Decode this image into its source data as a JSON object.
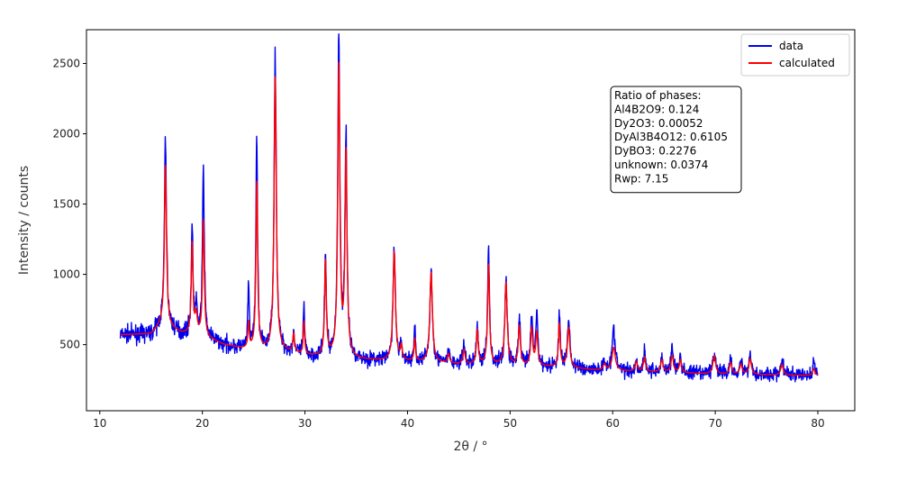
{
  "chart_data": {
    "type": "line",
    "xlabel": "2θ / °",
    "ylabel": "Intensity / counts",
    "xlim": [
      8.7,
      83.6
    ],
    "ylim": [
      30,
      2740
    ],
    "xticks": [
      10,
      20,
      30,
      40,
      50,
      60,
      70,
      80
    ],
    "yticks": [
      500,
      1000,
      1500,
      2000,
      2500
    ],
    "legend_position": "top-right",
    "x_range": [
      12,
      80
    ],
    "series": [
      {
        "name": "data",
        "color": "#0000ee",
        "style": "noisy-line",
        "noise": 28
      },
      {
        "name": "calculated",
        "color": "#ff0000",
        "style": "line",
        "noise": 0
      }
    ],
    "background": [
      [
        12,
        570
      ],
      [
        15,
        575
      ],
      [
        16,
        640
      ],
      [
        18,
        580
      ],
      [
        20,
        560
      ],
      [
        22,
        500
      ],
      [
        24,
        470
      ],
      [
        26,
        460
      ],
      [
        28,
        450
      ],
      [
        30,
        420
      ],
      [
        33,
        410
      ],
      [
        36,
        390
      ],
      [
        40,
        380
      ],
      [
        45,
        360
      ],
      [
        50,
        350
      ],
      [
        55,
        340
      ],
      [
        58,
        320
      ],
      [
        62,
        310
      ],
      [
        66,
        300
      ],
      [
        70,
        290
      ],
      [
        75,
        285
      ],
      [
        80,
        280
      ]
    ],
    "peaks": [
      {
        "x": 16.4,
        "calc": 1780,
        "obs": 1955,
        "w": 0.12
      },
      {
        "x": 19.0,
        "calc": 1220,
        "obs": 1330,
        "w": 0.1
      },
      {
        "x": 19.4,
        "calc": 700,
        "obs": 740,
        "w": 0.12
      },
      {
        "x": 20.1,
        "calc": 1380,
        "obs": 1780,
        "w": 0.1
      },
      {
        "x": 24.5,
        "calc": 650,
        "obs": 900,
        "w": 0.08
      },
      {
        "x": 25.3,
        "calc": 1660,
        "obs": 1950,
        "w": 0.1
      },
      {
        "x": 27.1,
        "calc": 2410,
        "obs": 2530,
        "w": 0.13
      },
      {
        "x": 28.9,
        "calc": 570,
        "obs": 580,
        "w": 0.1
      },
      {
        "x": 29.9,
        "calc": 660,
        "obs": 750,
        "w": 0.08
      },
      {
        "x": 32.0,
        "calc": 1090,
        "obs": 1130,
        "w": 0.1
      },
      {
        "x": 33.3,
        "calc": 2460,
        "obs": 2680,
        "w": 0.12
      },
      {
        "x": 34.0,
        "calc": 1850,
        "obs": 1950,
        "w": 0.12
      },
      {
        "x": 38.7,
        "calc": 1160,
        "obs": 1170,
        "w": 0.14
      },
      {
        "x": 39.4,
        "calc": 480,
        "obs": 490,
        "w": 0.1
      },
      {
        "x": 40.7,
        "calc": 540,
        "obs": 620,
        "w": 0.08
      },
      {
        "x": 42.3,
        "calc": 1010,
        "obs": 1010,
        "w": 0.15
      },
      {
        "x": 44.0,
        "calc": 430,
        "obs": 440,
        "w": 0.12
      },
      {
        "x": 45.5,
        "calc": 460,
        "obs": 490,
        "w": 0.12
      },
      {
        "x": 46.8,
        "calc": 600,
        "obs": 630,
        "w": 0.11
      },
      {
        "x": 47.9,
        "calc": 1070,
        "obs": 1200,
        "w": 0.11
      },
      {
        "x": 49.6,
        "calc": 940,
        "obs": 940,
        "w": 0.14
      },
      {
        "x": 50.9,
        "calc": 630,
        "obs": 670,
        "w": 0.12
      },
      {
        "x": 52.1,
        "calc": 610,
        "obs": 680,
        "w": 0.12
      },
      {
        "x": 52.6,
        "calc": 580,
        "obs": 700,
        "w": 0.12
      },
      {
        "x": 54.8,
        "calc": 650,
        "obs": 710,
        "w": 0.1
      },
      {
        "x": 55.7,
        "calc": 620,
        "obs": 680,
        "w": 0.14
      },
      {
        "x": 59.2,
        "calc": 360,
        "obs": 380,
        "w": 0.15
      },
      {
        "x": 60.1,
        "calc": 480,
        "obs": 600,
        "w": 0.18
      },
      {
        "x": 62.3,
        "calc": 380,
        "obs": 380,
        "w": 0.12
      },
      {
        "x": 63.1,
        "calc": 410,
        "obs": 460,
        "w": 0.12
      },
      {
        "x": 64.8,
        "calc": 390,
        "obs": 400,
        "w": 0.14
      },
      {
        "x": 65.8,
        "calc": 420,
        "obs": 470,
        "w": 0.14
      },
      {
        "x": 66.6,
        "calc": 390,
        "obs": 410,
        "w": 0.12
      },
      {
        "x": 69.9,
        "calc": 420,
        "obs": 440,
        "w": 0.16
      },
      {
        "x": 71.5,
        "calc": 370,
        "obs": 390,
        "w": 0.14
      },
      {
        "x": 72.5,
        "calc": 360,
        "obs": 380,
        "w": 0.14
      },
      {
        "x": 73.4,
        "calc": 400,
        "obs": 430,
        "w": 0.14
      },
      {
        "x": 76.5,
        "calc": 360,
        "obs": 390,
        "w": 0.14
      },
      {
        "x": 79.6,
        "calc": 330,
        "obs": 380,
        "w": 0.12
      }
    ],
    "annotation": {
      "lines": [
        "Ratio of phases:",
        "Al4B2O9: 0.124",
        "Dy2O3: 0.00052",
        "DyAl3B4O12: 0.6105",
        "DyBO3: 0.2276",
        "unknown: 0.0374",
        "Rwp: 7.15"
      ]
    }
  }
}
